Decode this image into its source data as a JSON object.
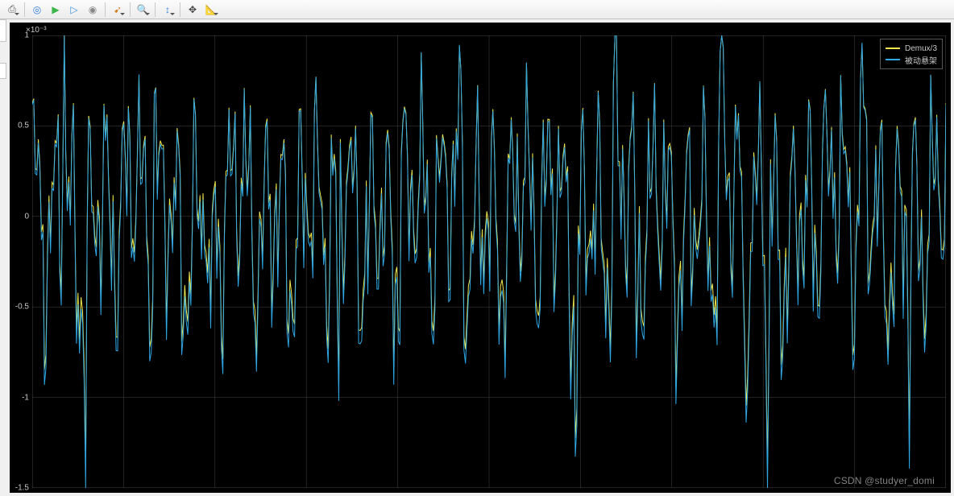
{
  "toolbar": {
    "icons": [
      {
        "name": "print-icon",
        "glyph": "⎙",
        "color": "#555",
        "drop": true
      },
      {
        "sep": true
      },
      {
        "name": "target-icon",
        "glyph": "◎",
        "color": "#2b7bd6"
      },
      {
        "name": "play-icon",
        "glyph": "▶",
        "color": "#3cb54a"
      },
      {
        "name": "play-outline-icon",
        "glyph": "▷",
        "color": "#3a8fdc"
      },
      {
        "name": "stop-icon",
        "glyph": "◉",
        "color": "#888"
      },
      {
        "sep": true
      },
      {
        "name": "step-forward-icon",
        "glyph": "➹",
        "color": "#d07a1a",
        "drop": true
      },
      {
        "sep": true
      },
      {
        "name": "zoom-icon",
        "glyph": "🔍",
        "color": "#555",
        "drop": true
      },
      {
        "sep": true
      },
      {
        "name": "autoscale-icon",
        "glyph": "↕",
        "color": "#2b7bd6",
        "drop": true
      },
      {
        "sep": true
      },
      {
        "name": "cursor-icon",
        "glyph": "✥",
        "color": "#444"
      },
      {
        "name": "measure-icon",
        "glyph": "📐",
        "color": "#555",
        "drop": true
      }
    ]
  },
  "chart": {
    "type": "line",
    "background_color": "#000000",
    "grid_color": "#454545",
    "axis_color": "#cccccc",
    "exponent_label": "×10⁻³",
    "ylim": [
      -1.5,
      1.0
    ],
    "yticks": [
      -1.5,
      -1,
      -0.5,
      0,
      0.5,
      1
    ],
    "xlim": [
      0,
      10
    ],
    "xgrid_count": 10,
    "line_width": 1,
    "series": [
      {
        "name": "Demux/3",
        "color": "#f0e84a",
        "offset": 0.02,
        "amp": 0.97
      },
      {
        "name": "被动悬架",
        "color": "#2fa8e6",
        "offset": -0.02,
        "amp": 1.02
      }
    ],
    "signal": {
      "n_points": 600,
      "base_freq": 5.2,
      "harmonics": [
        {
          "f": 5.2,
          "a": 0.4,
          "p": 0.0
        },
        {
          "f": 11.3,
          "a": 0.25,
          "p": 1.2
        },
        {
          "f": 2.6,
          "a": 0.2,
          "p": 2.3
        },
        {
          "f": 18.1,
          "a": 0.18,
          "p": 0.7
        },
        {
          "f": 0.9,
          "a": 0.1,
          "p": 1.8
        },
        {
          "f": 28.5,
          "a": 0.1,
          "p": 0.3
        }
      ],
      "spikes": [
        {
          "t": 0.35,
          "h": 1.02
        },
        {
          "t": 0.58,
          "h": -0.88
        },
        {
          "t": 1.35,
          "h": 0.87
        },
        {
          "t": 1.95,
          "h": -1.32
        },
        {
          "t": 3.35,
          "h": -1.28
        },
        {
          "t": 4.05,
          "h": 0.63
        },
        {
          "t": 4.68,
          "h": 0.71
        },
        {
          "t": 5.95,
          "h": -0.98
        },
        {
          "t": 6.38,
          "h": 1.15
        },
        {
          "t": 6.62,
          "h": -0.9
        },
        {
          "t": 7.55,
          "h": 1.13
        },
        {
          "t": 7.8,
          "h": -1.12
        },
        {
          "t": 8.05,
          "h": -1.48
        },
        {
          "t": 8.65,
          "h": 0.82
        },
        {
          "t": 9.08,
          "h": 0.86
        },
        {
          "t": 9.6,
          "h": -0.92
        }
      ],
      "spike_width": 0.018
    }
  },
  "legend": {
    "items": [
      {
        "label": "Demux/3",
        "color": "#f0e84a"
      },
      {
        "label": "被动悬架",
        "color": "#2fa8e6"
      }
    ]
  },
  "watermark": "CSDN @studyer_domi"
}
